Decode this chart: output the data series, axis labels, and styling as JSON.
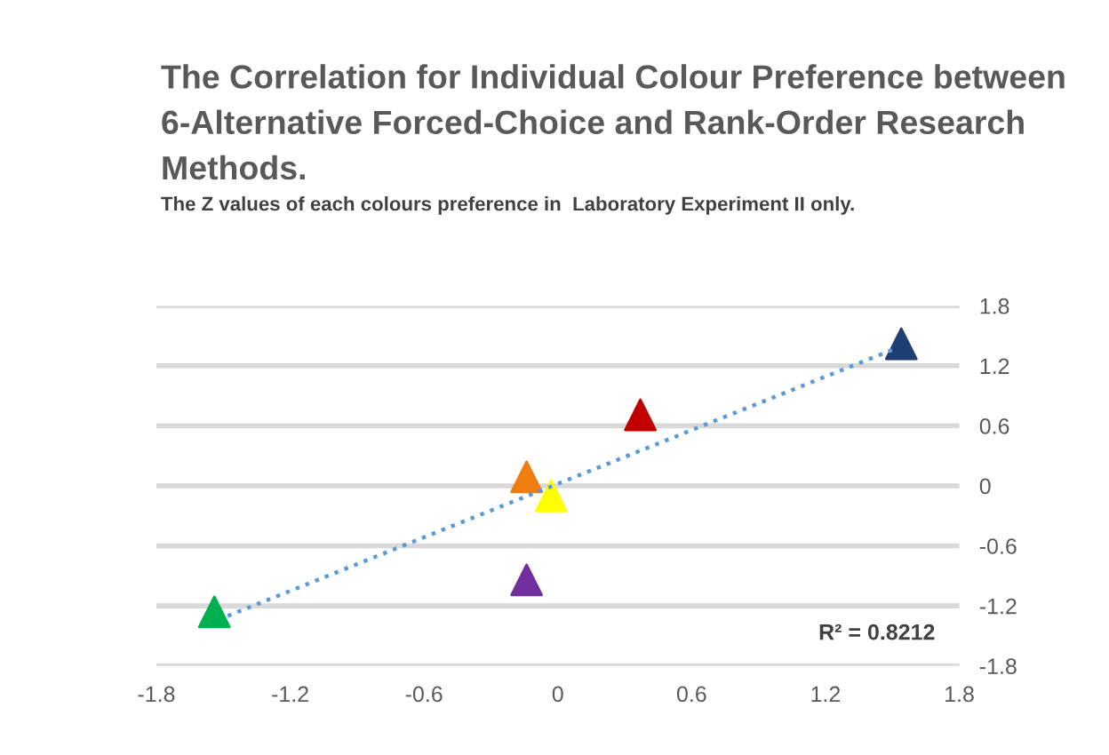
{
  "chart_data": {
    "type": "scatter",
    "title": "The Correlation for Individual Colour Preference between 6-Alternative Forced-Choice and Rank-Order Research Methods.",
    "subtitle": "The Z values of each colours preference in  Laboratory Experiment II only.",
    "series": [
      {
        "x": [
          1.54,
          0.37,
          -0.14,
          -0.03,
          -0.14,
          -1.54
        ],
        "values": [
          1.42,
          0.71,
          0.09,
          -0.1,
          -0.94,
          -1.26
        ],
        "colors": [
          "#1f3f73",
          "#c00000",
          "#f07d10",
          "#ffff00",
          "#7030a0",
          "#00b050"
        ],
        "marker": "triangle"
      },
      {
        "type": "line",
        "x": [
          -1.48,
          1.5
        ],
        "values": [
          -1.3,
          1.36
        ],
        "color": "#5b9bd5",
        "line_style": "dotted",
        "marker": "none"
      }
    ],
    "annotations": [
      "R² = 0.8212"
    ],
    "xlim": [
      -1.8,
      1.8
    ],
    "xticks": [
      -1.8,
      -1.2,
      -0.6,
      0,
      0.6,
      1.2,
      1.8
    ],
    "ylim": [
      -1.8,
      1.8
    ],
    "yticks": [
      -1.8,
      -1.2,
      -0.6,
      0,
      0.6,
      1.2,
      1.8
    ],
    "grid": "y",
    "legend": false
  }
}
